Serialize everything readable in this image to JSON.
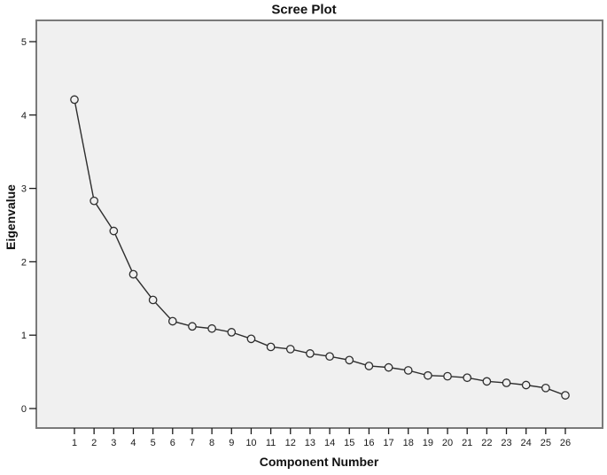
{
  "chart_data": {
    "type": "line",
    "title": "Scree Plot",
    "xlabel": "Component Number",
    "ylabel": "Eigenvalue",
    "x": [
      1,
      2,
      3,
      4,
      5,
      6,
      7,
      8,
      9,
      10,
      11,
      12,
      13,
      14,
      15,
      16,
      17,
      18,
      19,
      20,
      21,
      22,
      23,
      24,
      25,
      26
    ],
    "values": [
      4.21,
      2.83,
      2.42,
      1.83,
      1.48,
      1.19,
      1.12,
      1.09,
      1.04,
      0.95,
      0.84,
      0.81,
      0.75,
      0.71,
      0.66,
      0.58,
      0.56,
      0.52,
      0.45,
      0.44,
      0.42,
      0.37,
      0.35,
      0.32,
      0.28,
      0.18
    ],
    "yticks": [
      0,
      1,
      2,
      3,
      4,
      5
    ],
    "xticks": [
      1,
      2,
      3,
      4,
      5,
      6,
      7,
      8,
      9,
      10,
      11,
      12,
      13,
      14,
      15,
      16,
      17,
      18,
      19,
      20,
      21,
      22,
      23,
      24,
      25,
      26
    ],
    "ylim": [
      0,
      5
    ],
    "grid": "off",
    "legend": "none",
    "marker": "open-circle",
    "colors": {
      "line": "#2e2e2e",
      "marker_stroke": "#2e2e2e",
      "marker_fill": "#f0f0f0",
      "plot_background": "#f0f0f0",
      "frame_border": "#7a7a7a",
      "text": "#1a1a1a",
      "page_background": "#ffffff"
    }
  }
}
